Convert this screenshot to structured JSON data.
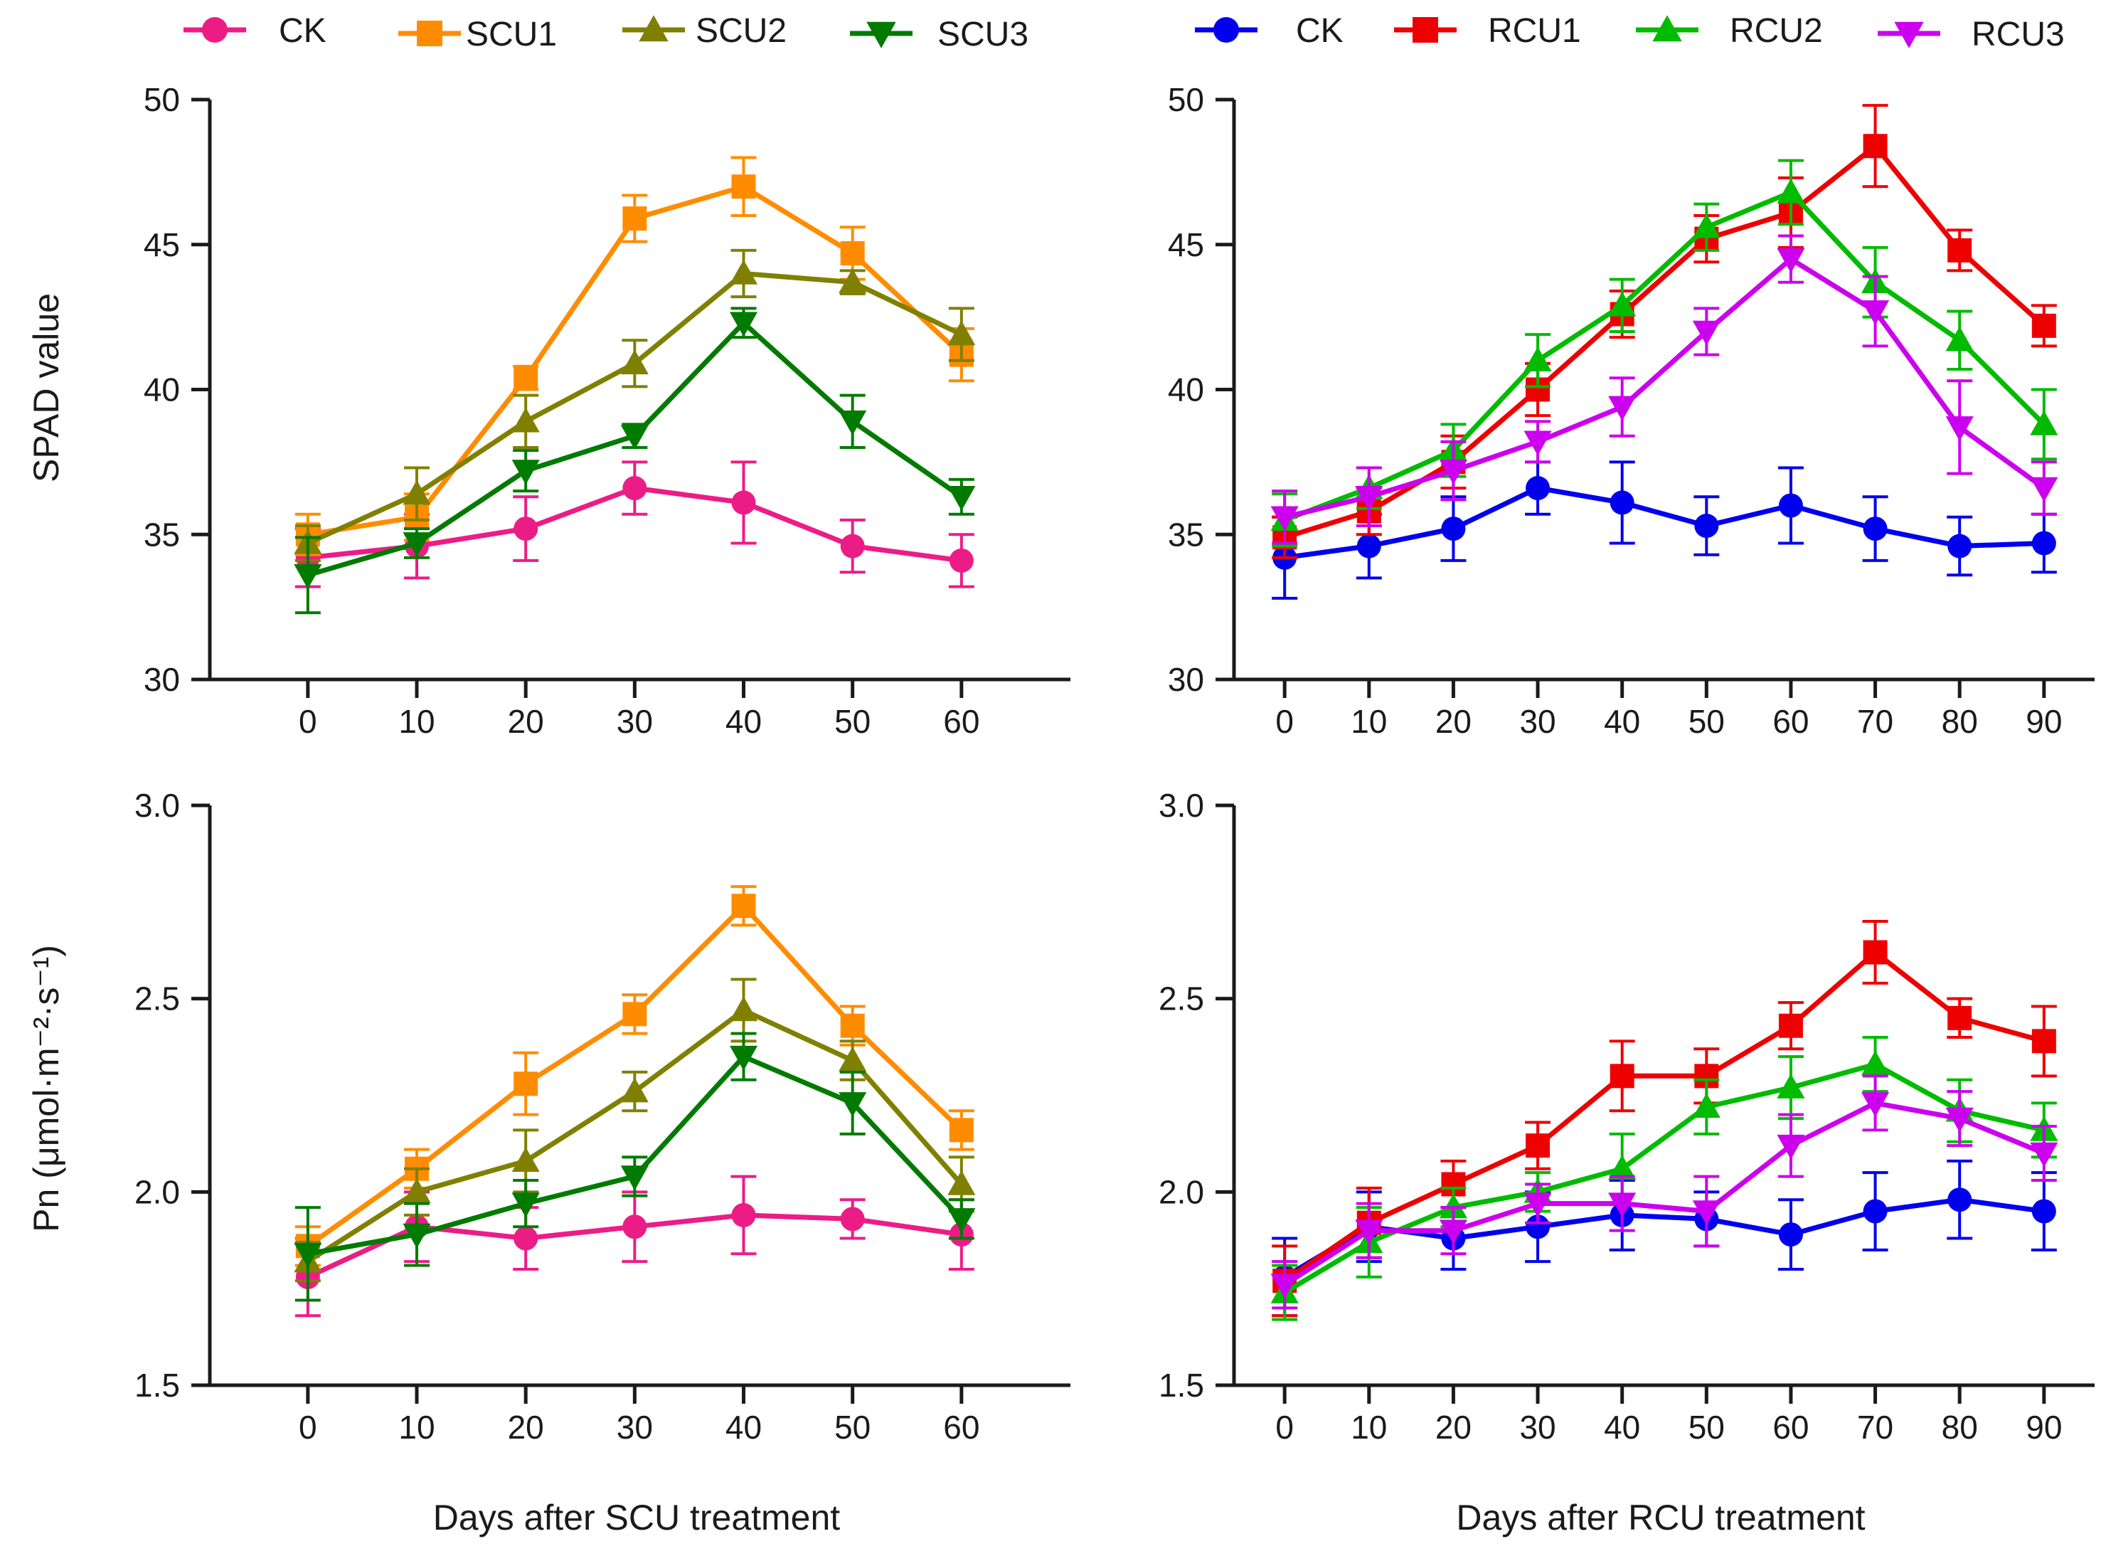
{
  "figure": {
    "xlabel_left": "Days after SCU treatment",
    "xlabel_right": "Days after RCU treatment",
    "ylabel_top": "SPAD value",
    "ylabel_bottom": "Pn (μmol·m⁻²·s⁻¹)"
  },
  "legends": {
    "left": [
      {
        "label": "CK",
        "color": "#ec1c87",
        "marker": "circle"
      },
      {
        "label": "SCU1",
        "color": "#ff8c00",
        "marker": "square"
      },
      {
        "label": "SCU2",
        "color": "#808000",
        "marker": "triangle-up"
      },
      {
        "label": "SCU3",
        "color": "#007b00",
        "marker": "triangle-down"
      }
    ],
    "right": [
      {
        "label": "CK",
        "color": "#0000ee",
        "marker": "circle"
      },
      {
        "label": "RCU1",
        "color": "#ee0000",
        "marker": "square"
      },
      {
        "label": "RCU2",
        "color": "#00bb00",
        "marker": "triangle-up"
      },
      {
        "label": "RCU3",
        "color": "#cc00ee",
        "marker": "triangle-down"
      }
    ]
  },
  "chart_data": [
    {
      "id": "spad-scu",
      "type": "line",
      "xlabel": "",
      "ylabel": "SPAD value",
      "x": [
        0,
        10,
        20,
        30,
        40,
        50,
        60
      ],
      "xlim": [
        -9,
        70
      ],
      "ylim": [
        30,
        50
      ],
      "yticks": [
        30,
        35,
        40,
        45,
        50
      ],
      "ytick_labels": [
        "30",
        "35",
        "40",
        "45",
        "50"
      ],
      "series": [
        {
          "name": "CK",
          "color": "#ec1c87",
          "marker": "circle",
          "values": [
            34.2,
            34.6,
            35.2,
            36.6,
            36.1,
            34.6,
            34.1
          ],
          "errors": [
            1.0,
            1.1,
            1.1,
            0.9,
            1.4,
            0.9,
            0.9
          ]
        },
        {
          "name": "SCU1",
          "color": "#ff8c00",
          "marker": "square",
          "values": [
            35.0,
            35.6,
            40.4,
            45.9,
            47.0,
            44.7,
            41.2
          ],
          "errors": [
            0.7,
            0.8,
            0.4,
            0.8,
            1.0,
            0.9,
            0.9
          ]
        },
        {
          "name": "SCU2",
          "color": "#808000",
          "marker": "triangle-up",
          "values": [
            34.7,
            36.4,
            38.9,
            40.9,
            44.0,
            43.7,
            41.9
          ],
          "errors": [
            0.6,
            0.9,
            0.9,
            0.8,
            0.8,
            0.4,
            0.9
          ]
        },
        {
          "name": "SCU3",
          "color": "#007b00",
          "marker": "triangle-down",
          "values": [
            33.6,
            34.7,
            37.2,
            38.4,
            42.3,
            38.9,
            36.3
          ],
          "errors": [
            1.3,
            0.5,
            0.7,
            0.4,
            0.5,
            0.9,
            0.6
          ]
        }
      ]
    },
    {
      "id": "spad-rcu",
      "type": "line",
      "xlabel": "",
      "ylabel": "",
      "x": [
        0,
        10,
        20,
        30,
        40,
        50,
        60,
        70,
        80,
        90
      ],
      "xlim": [
        -6,
        96
      ],
      "ylim": [
        30,
        50
      ],
      "yticks": [
        30,
        35,
        40,
        45,
        50
      ],
      "ytick_labels": [
        "30",
        "35",
        "40",
        "45",
        "50"
      ],
      "series": [
        {
          "name": "CK",
          "color": "#0000ee",
          "marker": "circle",
          "values": [
            34.2,
            34.6,
            35.2,
            36.6,
            36.1,
            35.3,
            36.0,
            35.2,
            34.6,
            34.7
          ],
          "errors": [
            1.4,
            1.1,
            1.1,
            0.9,
            1.4,
            1.0,
            1.3,
            1.1,
            1.0,
            1.0
          ]
        },
        {
          "name": "RCU1",
          "color": "#ee0000",
          "marker": "square",
          "values": [
            34.9,
            35.8,
            37.5,
            40.0,
            42.6,
            45.2,
            46.1,
            48.4,
            44.8,
            42.2
          ],
          "errors": [
            0.7,
            0.8,
            0.9,
            0.9,
            0.8,
            0.8,
            1.2,
            1.4,
            0.7,
            0.7
          ]
        },
        {
          "name": "RCU2",
          "color": "#00bb00",
          "marker": "triangle-up",
          "values": [
            35.5,
            36.6,
            37.9,
            41.0,
            42.9,
            45.6,
            46.8,
            43.7,
            41.7,
            38.8
          ],
          "errors": [
            0.9,
            0.7,
            0.9,
            0.9,
            0.9,
            0.8,
            1.1,
            1.2,
            1.0,
            1.2
          ]
        },
        {
          "name": "RCU3",
          "color": "#cc00ee",
          "marker": "triangle-down",
          "values": [
            35.6,
            36.3,
            37.2,
            38.2,
            39.4,
            42.0,
            44.5,
            42.7,
            38.7,
            36.6
          ],
          "errors": [
            0.9,
            1.0,
            1.0,
            0.7,
            1.0,
            0.8,
            0.8,
            1.2,
            1.6,
            0.9
          ]
        }
      ]
    },
    {
      "id": "pn-scu",
      "type": "line",
      "xlabel": "Days after SCU treatment",
      "ylabel": "Pn (μmol·m⁻²·s⁻¹)",
      "x": [
        0,
        10,
        20,
        30,
        40,
        50,
        60
      ],
      "xlim": [
        -9,
        70
      ],
      "ylim": [
        1.5,
        3.0
      ],
      "yticks": [
        1.5,
        2.0,
        2.5,
        3.0
      ],
      "ytick_labels": [
        "1.5",
        "2.0",
        "2.5",
        "3.0"
      ],
      "series": [
        {
          "name": "CK",
          "color": "#ec1c87",
          "marker": "circle",
          "values": [
            1.78,
            1.91,
            1.88,
            1.91,
            1.94,
            1.93,
            1.89
          ],
          "errors": [
            0.1,
            0.09,
            0.08,
            0.09,
            0.1,
            0.05,
            0.09
          ]
        },
        {
          "name": "SCU1",
          "color": "#ff8c00",
          "marker": "square",
          "values": [
            1.86,
            2.06,
            2.28,
            2.46,
            2.74,
            2.43,
            2.16
          ],
          "errors": [
            0.05,
            0.05,
            0.08,
            0.05,
            0.05,
            0.05,
            0.05
          ]
        },
        {
          "name": "SCU2",
          "color": "#808000",
          "marker": "triangle-up",
          "values": [
            1.82,
            2.0,
            2.08,
            2.26,
            2.47,
            2.34,
            2.02
          ],
          "errors": [
            0.05,
            0.06,
            0.08,
            0.05,
            0.08,
            0.05,
            0.07
          ]
        },
        {
          "name": "SCU3",
          "color": "#007b00",
          "marker": "triangle-down",
          "values": [
            1.84,
            1.89,
            1.97,
            2.04,
            2.35,
            2.23,
            1.93
          ],
          "errors": [
            0.12,
            0.08,
            0.06,
            0.05,
            0.06,
            0.08,
            0.05
          ]
        }
      ]
    },
    {
      "id": "pn-rcu",
      "type": "line",
      "xlabel": "Days after RCU treatment",
      "ylabel": "",
      "x": [
        0,
        10,
        20,
        30,
        40,
        50,
        60,
        70,
        80,
        90
      ],
      "xlim": [
        -6,
        96
      ],
      "ylim": [
        1.5,
        3.0
      ],
      "yticks": [
        1.5,
        2.0,
        2.5,
        3.0
      ],
      "ytick_labels": [
        "1.5",
        "2.0",
        "2.5",
        "3.0"
      ],
      "series": [
        {
          "name": "CK",
          "color": "#0000ee",
          "marker": "circle",
          "values": [
            1.78,
            1.91,
            1.88,
            1.91,
            1.94,
            1.93,
            1.89,
            1.95,
            1.98,
            1.95
          ],
          "errors": [
            0.1,
            0.09,
            0.08,
            0.09,
            0.09,
            0.07,
            0.09,
            0.1,
            0.1,
            0.1
          ]
        },
        {
          "name": "RCU1",
          "color": "#ee0000",
          "marker": "square",
          "values": [
            1.77,
            1.92,
            2.02,
            2.12,
            2.3,
            2.3,
            2.43,
            2.62,
            2.45,
            2.39
          ],
          "errors": [
            0.09,
            0.09,
            0.06,
            0.06,
            0.09,
            0.07,
            0.06,
            0.08,
            0.05,
            0.09
          ]
        },
        {
          "name": "RCU2",
          "color": "#00bb00",
          "marker": "triangle-up",
          "values": [
            1.74,
            1.87,
            1.96,
            2.0,
            2.06,
            2.22,
            2.27,
            2.33,
            2.21,
            2.16
          ],
          "errors": [
            0.07,
            0.09,
            0.05,
            0.05,
            0.09,
            0.07,
            0.08,
            0.07,
            0.08,
            0.07
          ]
        },
        {
          "name": "RCU3",
          "color": "#cc00ee",
          "marker": "triangle-down",
          "values": [
            1.76,
            1.9,
            1.9,
            1.97,
            1.97,
            1.95,
            2.12,
            2.23,
            2.19,
            2.1
          ],
          "errors": [
            0.06,
            0.07,
            0.06,
            0.05,
            0.07,
            0.09,
            0.08,
            0.07,
            0.07,
            0.07
          ]
        }
      ]
    }
  ]
}
